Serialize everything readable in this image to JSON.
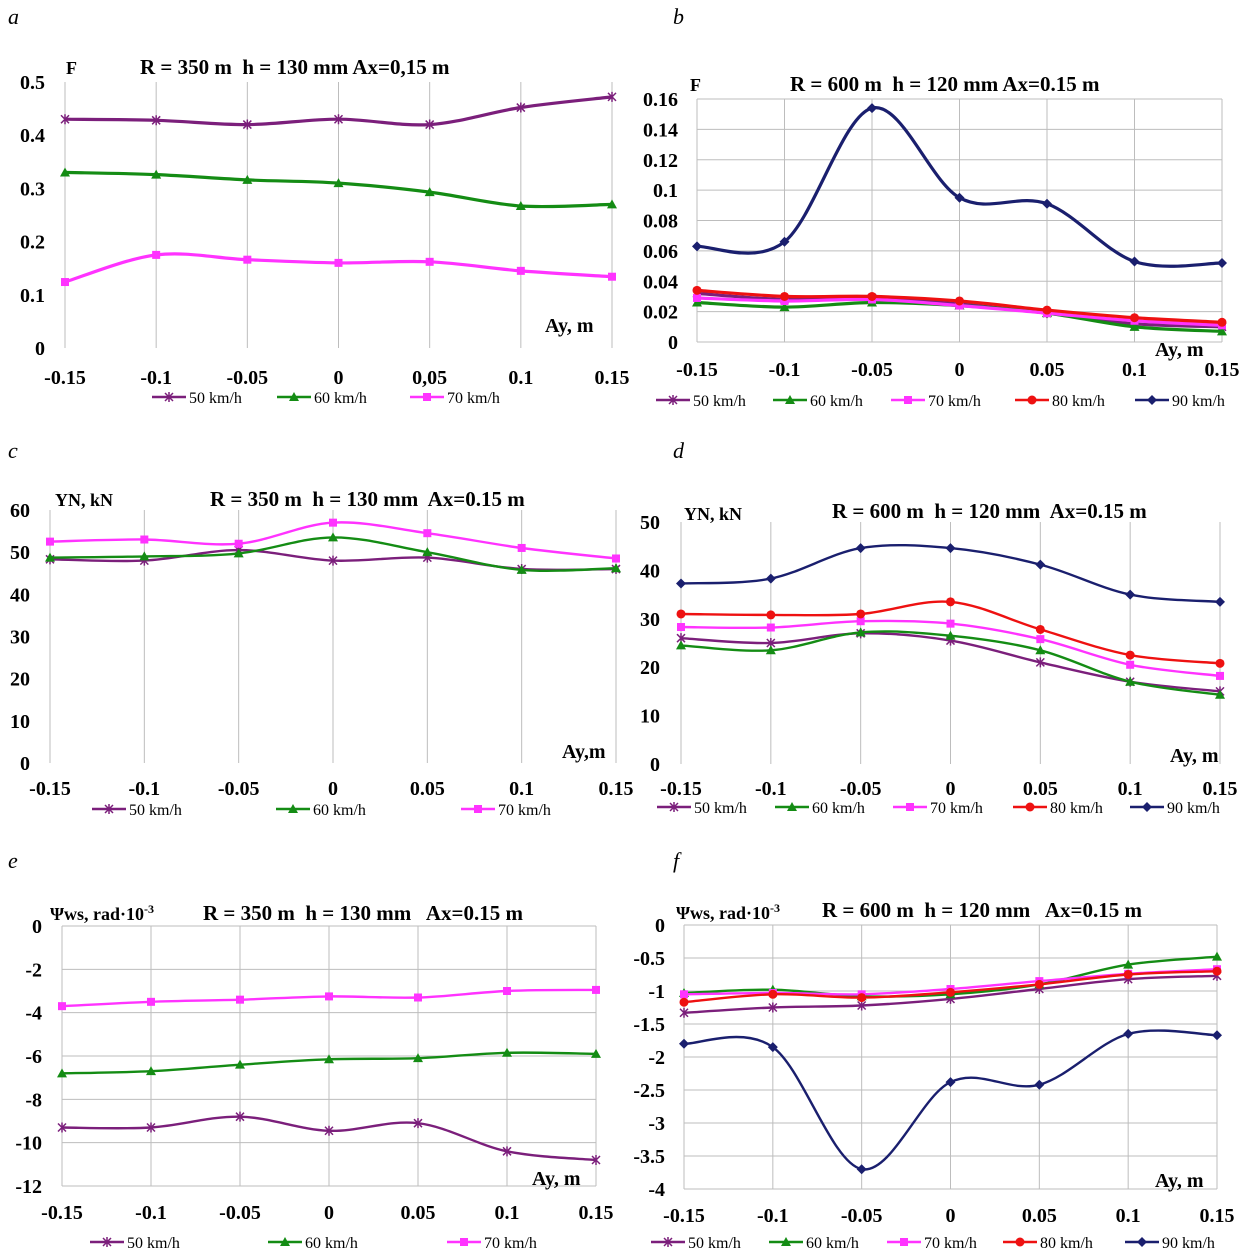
{
  "colors": {
    "50 km/h": "#7b1f7b",
    "60 km/h": "#148c14",
    "70 km/h": "#ff33ff",
    "80 km/h": "#ee1111",
    "90 km/h": "#1a1f6e",
    "grid": "#bdbdbd"
  },
  "chart_data": [
    {
      "panel_label": "a",
      "type": "line",
      "title": "R = 350 m  h = 130 mm Ax=0,15 m",
      "ylabel": "F",
      "xlabel": "Ay, m",
      "x": [
        -0.15,
        -0.1,
        -0.05,
        0,
        0.05,
        0.1,
        0.15
      ],
      "x_tick_labels": [
        "-0.15",
        "-0.1",
        "-0.05",
        "0",
        "0,05",
        "0.1",
        "0.15"
      ],
      "ylim": [
        0,
        0.5
      ],
      "y_ticks": [
        0,
        0.1,
        0.2,
        0.3,
        0.4,
        0.5
      ],
      "y_tick_labels": [
        "0",
        "0.1",
        "0.2",
        "0.3",
        "0.4",
        "0.5"
      ],
      "grid": "vertical",
      "legend_position": "bottom",
      "series": [
        {
          "name": "50 km/h",
          "marker": "star",
          "values": [
            0.43,
            0.428,
            0.42,
            0.43,
            0.42,
            0.452,
            0.472
          ]
        },
        {
          "name": "60 km/h",
          "marker": "triangle",
          "values": [
            0.33,
            0.326,
            0.316,
            0.31,
            0.293,
            0.267,
            0.27
          ]
        },
        {
          "name": "70 km/h",
          "marker": "square",
          "values": [
            0.124,
            0.175,
            0.166,
            0.16,
            0.162,
            0.145,
            0.134
          ]
        }
      ]
    },
    {
      "panel_label": "b",
      "type": "line",
      "title": "R = 600 m  h = 120 mm Ax=0.15 m",
      "ylabel": "F",
      "xlabel": "Ay, m",
      "x": [
        -0.15,
        -0.1,
        -0.05,
        0,
        0.05,
        0.1,
        0.15
      ],
      "x_tick_labels": [
        "-0.15",
        "-0.1",
        "-0.05",
        "0",
        "0.05",
        "0.1",
        "0.15"
      ],
      "ylim": [
        0,
        0.16
      ],
      "y_ticks": [
        0,
        0.02,
        0.04,
        0.06,
        0.08,
        0.1,
        0.12,
        0.14,
        0.16
      ],
      "y_tick_labels": [
        "0",
        "0.02",
        "0.04",
        "0.06",
        "0.08",
        "0.1",
        "0.12",
        "0.14",
        "0.16"
      ],
      "grid": "both",
      "legend_position": "bottom",
      "series": [
        {
          "name": "50 km/h",
          "marker": "star",
          "values": [
            0.032,
            0.028,
            0.029,
            0.025,
            0.019,
            0.012,
            0.01
          ]
        },
        {
          "name": "60 km/h",
          "marker": "triangle",
          "values": [
            0.026,
            0.023,
            0.026,
            0.024,
            0.019,
            0.01,
            0.007
          ]
        },
        {
          "name": "70 km/h",
          "marker": "square",
          "values": [
            0.029,
            0.027,
            0.028,
            0.024,
            0.019,
            0.014,
            0.011
          ]
        },
        {
          "name": "80 km/h",
          "marker": "circle",
          "values": [
            0.034,
            0.03,
            0.03,
            0.027,
            0.021,
            0.016,
            0.013
          ]
        },
        {
          "name": "90 km/h",
          "marker": "diamond",
          "values": [
            0.063,
            0.066,
            0.154,
            0.095,
            0.091,
            0.053,
            0.052
          ]
        }
      ]
    },
    {
      "panel_label": "c",
      "type": "line",
      "title": "R = 350 m  h = 130 mm  Ax=0.15 m",
      "ylabel": "YN, kN",
      "xlabel": "Ay,m",
      "x": [
        -0.15,
        -0.1,
        -0.05,
        0,
        0.05,
        0.1,
        0.15
      ],
      "x_tick_labels": [
        "-0.15",
        "-0.1",
        "-0.05",
        "0",
        "0.05",
        "0.1",
        "0.15"
      ],
      "ylim": [
        0,
        60
      ],
      "y_ticks": [
        0,
        10,
        20,
        30,
        40,
        50,
        60
      ],
      "y_tick_labels": [
        "0",
        "10",
        "20",
        "30",
        "40",
        "50",
        "60"
      ],
      "grid": "vertical",
      "legend_position": "bottom",
      "series": [
        {
          "name": "50 km/h",
          "marker": "star",
          "values": [
            48.3,
            48,
            50.5,
            48,
            48.7,
            46,
            46
          ]
        },
        {
          "name": "60 km/h",
          "marker": "triangle",
          "values": [
            48.7,
            49,
            49.7,
            53.5,
            50,
            45.8,
            46.2
          ]
        },
        {
          "name": "70 km/h",
          "marker": "square",
          "values": [
            52.5,
            53,
            52,
            57,
            54.5,
            51,
            48.5
          ]
        }
      ]
    },
    {
      "panel_label": "d",
      "type": "line",
      "title": "R = 600 m  h = 120 mm  Ax=0.15 m",
      "ylabel": "YN, kN",
      "xlabel": "Ay, m",
      "x": [
        -0.15,
        -0.1,
        -0.05,
        0,
        0.05,
        0.1,
        0.15
      ],
      "x_tick_labels": [
        "-0.15",
        "-0.1",
        "-0.05",
        "0",
        "0.05",
        "0.1",
        "0.15"
      ],
      "ylim": [
        0,
        50
      ],
      "y_ticks": [
        0,
        10,
        20,
        30,
        40,
        50
      ],
      "y_tick_labels": [
        "0",
        "10",
        "20",
        "30",
        "40",
        "50"
      ],
      "grid": "vertical",
      "legend_position": "bottom",
      "series": [
        {
          "name": "50 km/h",
          "marker": "star",
          "values": [
            26,
            25,
            27,
            25.5,
            21,
            17,
            15
          ]
        },
        {
          "name": "60 km/h",
          "marker": "triangle",
          "values": [
            24.5,
            23.5,
            27.2,
            26.5,
            23.5,
            17,
            14.3
          ]
        },
        {
          "name": "70 km/h",
          "marker": "square",
          "values": [
            28.3,
            28.2,
            29.5,
            29,
            25.8,
            20.5,
            18.2
          ]
        },
        {
          "name": "80 km/h",
          "marker": "circle",
          "values": [
            31,
            30.8,
            31,
            33.5,
            27.8,
            22.5,
            20.8
          ]
        },
        {
          "name": "90 km/h",
          "marker": "diamond",
          "values": [
            37.3,
            38.3,
            44.6,
            44.6,
            41.2,
            35,
            33.5
          ]
        }
      ]
    },
    {
      "panel_label": "e",
      "type": "line",
      "title": "R = 350 m  h = 130 mm   Ax=0.15 m",
      "ylabel": "Ψws, rad·10",
      "ylabel_exp": "-3",
      "xlabel": "Ay, m",
      "x": [
        -0.15,
        -0.1,
        -0.05,
        0,
        0.05,
        0.1,
        0.15
      ],
      "x_tick_labels": [
        "-0.15",
        "-0.1",
        "-0.05",
        "0",
        "0.05",
        "0.1",
        "0.15"
      ],
      "ylim": [
        -12,
        0
      ],
      "y_ticks": [
        -12,
        -10,
        -8,
        -6,
        -4,
        -2,
        0
      ],
      "y_tick_labels": [
        "-12",
        "-10",
        "-8",
        "-6",
        "-4",
        "-2",
        "0"
      ],
      "grid": "both",
      "legend_position": "bottom",
      "series": [
        {
          "name": "50 km/h",
          "marker": "star",
          "values": [
            -9.3,
            -9.3,
            -8.8,
            -9.45,
            -9.1,
            -10.4,
            -10.8
          ]
        },
        {
          "name": "60 km/h",
          "marker": "triangle",
          "values": [
            -6.8,
            -6.7,
            -6.4,
            -6.15,
            -6.1,
            -5.85,
            -5.9
          ]
        },
        {
          "name": "70 km/h",
          "marker": "square",
          "values": [
            -3.7,
            -3.5,
            -3.4,
            -3.25,
            -3.3,
            -3.0,
            -2.95
          ]
        }
      ]
    },
    {
      "panel_label": "f",
      "type": "line",
      "title": "R = 600 m  h = 120 mm   Ax=0.15 m",
      "ylabel": "Ψws, rad·10",
      "ylabel_exp": "-3",
      "xlabel": "Ay, m",
      "x": [
        -0.15,
        -0.1,
        -0.05,
        0,
        0.05,
        0.1,
        0.15
      ],
      "x_tick_labels": [
        "-0.15",
        "-0.1",
        "-0.05",
        "0",
        "0.05",
        "0.1",
        "0.15"
      ],
      "ylim": [
        -4,
        0
      ],
      "y_ticks": [
        -4,
        -3.5,
        -3,
        -2.5,
        -2,
        -1.5,
        -1,
        -0.5,
        0
      ],
      "y_tick_labels": [
        "-4",
        "-3.5",
        "-3",
        "-2.5",
        "-2",
        "-1.5",
        "-1",
        "-0.5",
        "0"
      ],
      "grid": "both",
      "legend_position": "bottom",
      "series": [
        {
          "name": "50 km/h",
          "marker": "star",
          "values": [
            -1.33,
            -1.25,
            -1.22,
            -1.12,
            -0.97,
            -0.82,
            -0.77
          ]
        },
        {
          "name": "60 km/h",
          "marker": "triangle",
          "values": [
            -1.03,
            -0.98,
            -1.08,
            -1.05,
            -0.9,
            -0.6,
            -0.48
          ]
        },
        {
          "name": "70 km/h",
          "marker": "square",
          "values": [
            -1.05,
            -1.03,
            -1.05,
            -0.97,
            -0.85,
            -0.74,
            -0.67
          ]
        },
        {
          "name": "80 km/h",
          "marker": "circle",
          "values": [
            -1.17,
            -1.05,
            -1.1,
            -1.02,
            -0.9,
            -0.75,
            -0.7
          ]
        },
        {
          "name": "90 km/h",
          "marker": "diamond",
          "values": [
            -1.8,
            -1.85,
            -3.7,
            -2.38,
            -2.42,
            -1.65,
            -1.67
          ]
        }
      ]
    }
  ]
}
